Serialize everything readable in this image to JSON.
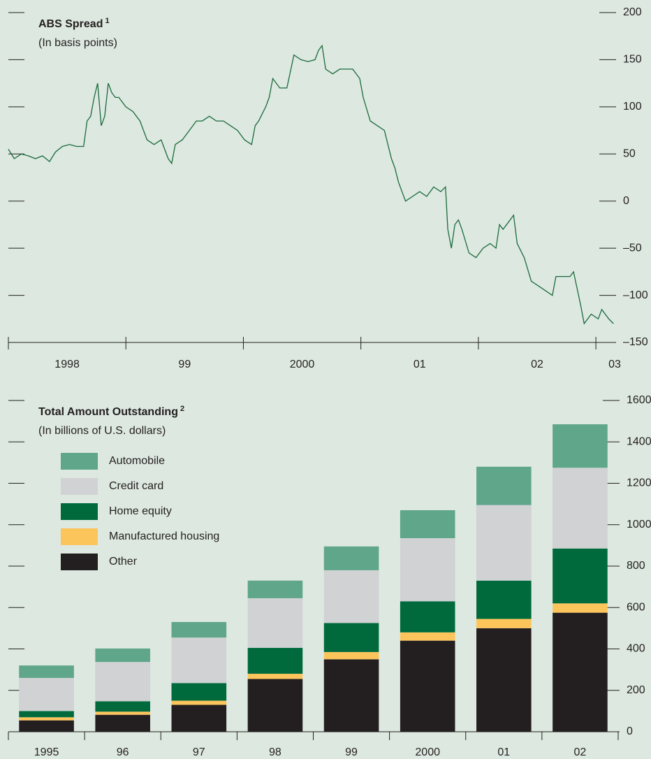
{
  "chart_data": [
    {
      "type": "line",
      "title": "ABS Spread",
      "title_note": "1",
      "subtitle": "(In basis points)",
      "color": "#1a6b3c",
      "x": [
        1998.0,
        1998.05,
        1998.11,
        1998.17,
        1998.23,
        1998.29,
        1998.35,
        1998.4,
        1998.46,
        1998.52,
        1998.58,
        1998.64,
        1998.67,
        1998.7,
        1998.73,
        1998.76,
        1998.79,
        1998.82,
        1998.85,
        1998.88,
        1998.91,
        1998.94,
        1999.0,
        1999.06,
        1999.12,
        1999.18,
        1999.24,
        1999.3,
        1999.36,
        1999.39,
        1999.42,
        1999.48,
        1999.54,
        1999.6,
        1999.65,
        1999.71,
        1999.77,
        1999.83,
        1999.89,
        1999.95,
        2000.01,
        2000.07,
        2000.1,
        2000.13,
        2000.19,
        2000.22,
        2000.25,
        2000.28,
        2000.31,
        2000.37,
        2000.43,
        2000.49,
        2000.55,
        2000.61,
        2000.64,
        2000.67,
        2000.7,
        2000.76,
        2000.82,
        2000.88,
        2000.93,
        2000.99,
        2001.02,
        2001.08,
        2001.14,
        2001.2,
        2001.26,
        2001.29,
        2001.32,
        2001.35,
        2001.38,
        2001.44,
        2001.5,
        2001.56,
        2001.62,
        2001.68,
        2001.72,
        2001.74,
        2001.77,
        2001.8,
        2001.83,
        2001.86,
        2001.92,
        2001.98,
        2002.04,
        2002.1,
        2002.15,
        2002.18,
        2002.21,
        2002.27,
        2002.3,
        2002.33,
        2002.39,
        2002.45,
        2002.51,
        2002.57,
        2002.63,
        2002.66,
        2002.72,
        2002.78,
        2002.81,
        2002.87,
        2002.9,
        2002.96,
        2003.02,
        2003.05,
        2003.11,
        2003.15
      ],
      "values": [
        55,
        45,
        50,
        48,
        45,
        48,
        42,
        52,
        58,
        60,
        58,
        58,
        85,
        90,
        110,
        125,
        80,
        90,
        125,
        115,
        110,
        110,
        100,
        95,
        85,
        65,
        60,
        65,
        45,
        40,
        60,
        65,
        75,
        85,
        85,
        90,
        85,
        85,
        80,
        75,
        65,
        60,
        80,
        85,
        100,
        110,
        130,
        125,
        120,
        120,
        155,
        150,
        148,
        150,
        160,
        165,
        140,
        135,
        140,
        140,
        140,
        130,
        110,
        85,
        80,
        75,
        45,
        35,
        20,
        10,
        0,
        5,
        10,
        5,
        15,
        10,
        15,
        -30,
        -50,
        -25,
        -20,
        -30,
        -55,
        -60,
        -50,
        -45,
        -50,
        -25,
        -30,
        -20,
        -15,
        -45,
        -60,
        -85,
        -90,
        -95,
        -100,
        -80,
        -80,
        -80,
        -75,
        -110,
        -130,
        -120,
        -125,
        -115,
        -125,
        -130
      ],
      "xlim": [
        1998,
        2003.16
      ],
      "xticks": [
        {
          "value": 1998,
          "label": "1998"
        },
        {
          "value": 1999,
          "label": "99"
        },
        {
          "value": 2000,
          "label": "2000"
        },
        {
          "value": 2001,
          "label": "01"
        },
        {
          "value": 2002,
          "label": "02"
        },
        {
          "value": 2003,
          "label": "03"
        }
      ],
      "ylim": [
        -150,
        200
      ],
      "yticks": [
        {
          "value": -150,
          "label": "–150"
        },
        {
          "value": -100,
          "label": "–100"
        },
        {
          "value": -50,
          "label": "–50"
        },
        0,
        50,
        100,
        150,
        200
      ]
    },
    {
      "type": "bar",
      "stacked": true,
      "title": "Total Amount Outstanding",
      "title_note": "2",
      "subtitle": "(In billions of U.S. dollars)",
      "categories": [
        "1995",
        "96",
        "97",
        "98",
        "99",
        "2000",
        "01",
        "02"
      ],
      "series": [
        {
          "name": "Other",
          "color": "#231f20",
          "values": [
            55,
            82,
            130,
            255,
            350,
            440,
            500,
            575
          ]
        },
        {
          "name": "Manufactured housing",
          "color": "#fcc55c",
          "values": [
            15,
            15,
            20,
            25,
            35,
            40,
            45,
            45
          ]
        },
        {
          "name": "Home equity",
          "color": "#006a3d",
          "values": [
            30,
            50,
            85,
            125,
            140,
            150,
            185,
            265
          ]
        },
        {
          "name": "Credit card",
          "color": "#d0d2d3",
          "values": [
            160,
            190,
            220,
            240,
            255,
            305,
            365,
            390
          ]
        },
        {
          "name": "Automobile",
          "color": "#5fa68a",
          "values": [
            60,
            65,
            75,
            85,
            115,
            135,
            185,
            210
          ]
        }
      ],
      "ylim": [
        0,
        1600
      ],
      "yticks": [
        0,
        200,
        400,
        600,
        800,
        1000,
        1200,
        1400,
        1600
      ]
    }
  ]
}
